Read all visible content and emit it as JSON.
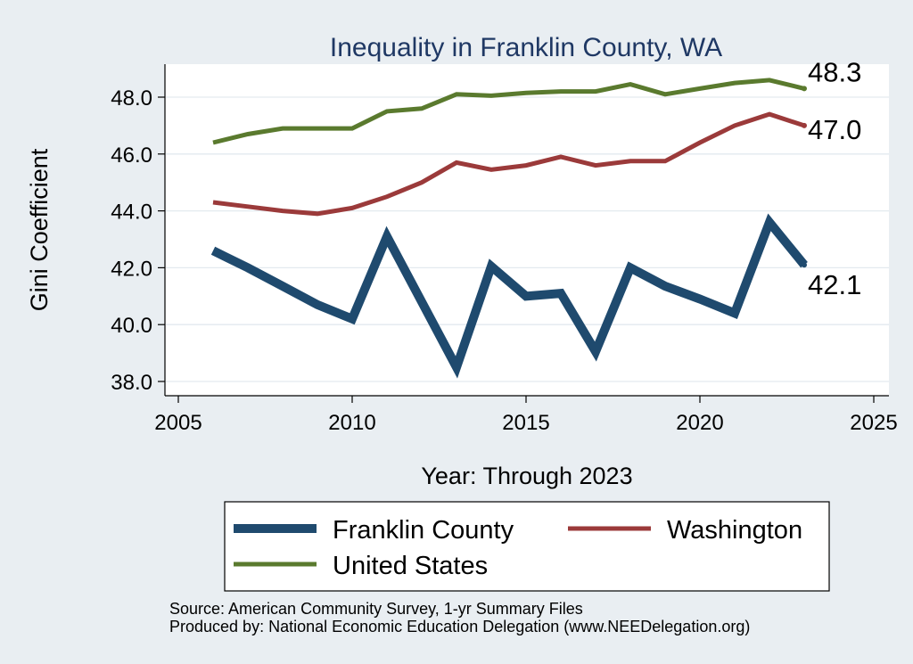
{
  "chart_data": {
    "type": "line",
    "title": "Inequality in Franklin County, WA",
    "xlabel": "Year: Through 2023",
    "ylabel": "Gini Coefficient",
    "xlim": [
      2005,
      2025
    ],
    "ylim": [
      37.8,
      49.2
    ],
    "x_ticks": [
      2005,
      2010,
      2015,
      2020,
      2025
    ],
    "x_tick_labels": [
      "2005",
      "2010",
      "2015",
      "2020",
      "2025"
    ],
    "y_ticks": [
      38,
      40,
      42,
      44,
      46,
      48
    ],
    "y_tick_labels": [
      "38.0",
      "40.0",
      "42.0",
      "44.0",
      "46.0",
      "48.0"
    ],
    "grid": true,
    "legend_position": "bottom",
    "series": [
      {
        "name": "Franklin County",
        "color": "#1f4a6e",
        "x": [
          2006,
          2007,
          2008,
          2009,
          2010,
          2011,
          2012,
          2013,
          2014,
          2015,
          2016,
          2017,
          2018,
          2019,
          2020,
          2021,
          2022,
          2023
        ],
        "values": [
          42.6,
          42.0,
          41.35,
          40.7,
          40.2,
          43.1,
          40.8,
          38.5,
          42.05,
          41.0,
          41.1,
          39.05,
          42.0,
          41.35,
          40.9,
          40.4,
          43.6,
          42.1
        ],
        "end_label": "42.1"
      },
      {
        "name": "Washington",
        "color": "#9b3a3a",
        "x": [
          2006,
          2007,
          2008,
          2009,
          2010,
          2011,
          2012,
          2013,
          2014,
          2015,
          2016,
          2017,
          2018,
          2019,
          2020,
          2021,
          2022,
          2023
        ],
        "values": [
          44.3,
          44.15,
          44.0,
          43.9,
          44.1,
          44.5,
          45.0,
          45.7,
          45.45,
          45.6,
          45.9,
          45.6,
          45.75,
          45.75,
          46.4,
          47.0,
          47.4,
          47.0
        ],
        "end_label": "47.0"
      },
      {
        "name": "United States",
        "color": "#5a7a2e",
        "x": [
          2006,
          2007,
          2008,
          2009,
          2010,
          2011,
          2012,
          2013,
          2014,
          2015,
          2016,
          2017,
          2018,
          2019,
          2020,
          2021,
          2022,
          2023
        ],
        "values": [
          46.4,
          46.7,
          46.9,
          46.9,
          46.9,
          47.5,
          47.6,
          48.1,
          48.05,
          48.15,
          48.2,
          48.2,
          48.45,
          48.1,
          48.3,
          48.5,
          48.6,
          48.3
        ],
        "end_label": "48.3"
      }
    ],
    "notes": [
      "Source: American Community Survey, 1-yr Summary Files",
      "Produced by: National Economic Education Delegation (www.NEEDelegation.org)"
    ]
  }
}
